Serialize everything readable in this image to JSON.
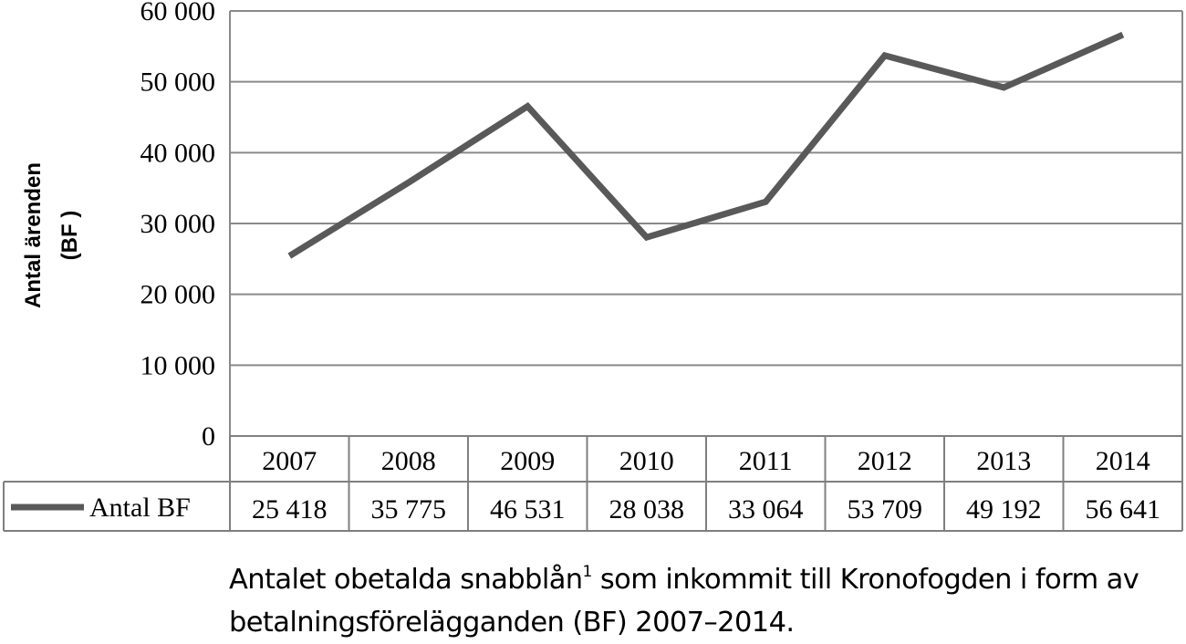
{
  "chart_data": {
    "type": "line",
    "categories": [
      "2007",
      "2008",
      "2009",
      "2010",
      "2011",
      "2012",
      "2013",
      "2014"
    ],
    "series": [
      {
        "name": "Antal BF",
        "values": [
          25418,
          35775,
          46531,
          28038,
          33064,
          53709,
          49192,
          56641
        ]
      }
    ],
    "value_labels": [
      "25 418",
      "35 775",
      "46 531",
      "28 038",
      "33 064",
      "53 709",
      "49 192",
      "56 641"
    ],
    "y_ticks": [
      "0",
      "10 000",
      "20 000",
      "30 000",
      "40 000",
      "50 000",
      "60 000"
    ],
    "ylim": [
      0,
      60000
    ],
    "ylabel_line1": "Antal ärenden",
    "ylabel_line2": "(BF )",
    "grid": true,
    "legend": "data-table",
    "line_color": "#595959"
  },
  "caption": {
    "part1": "Antalet obetalda snabblån",
    "footnote_mark": "1",
    "part2": " som inkommit till Kronofogden i form av betalningsförelägganden (BF) 2007–2014."
  }
}
